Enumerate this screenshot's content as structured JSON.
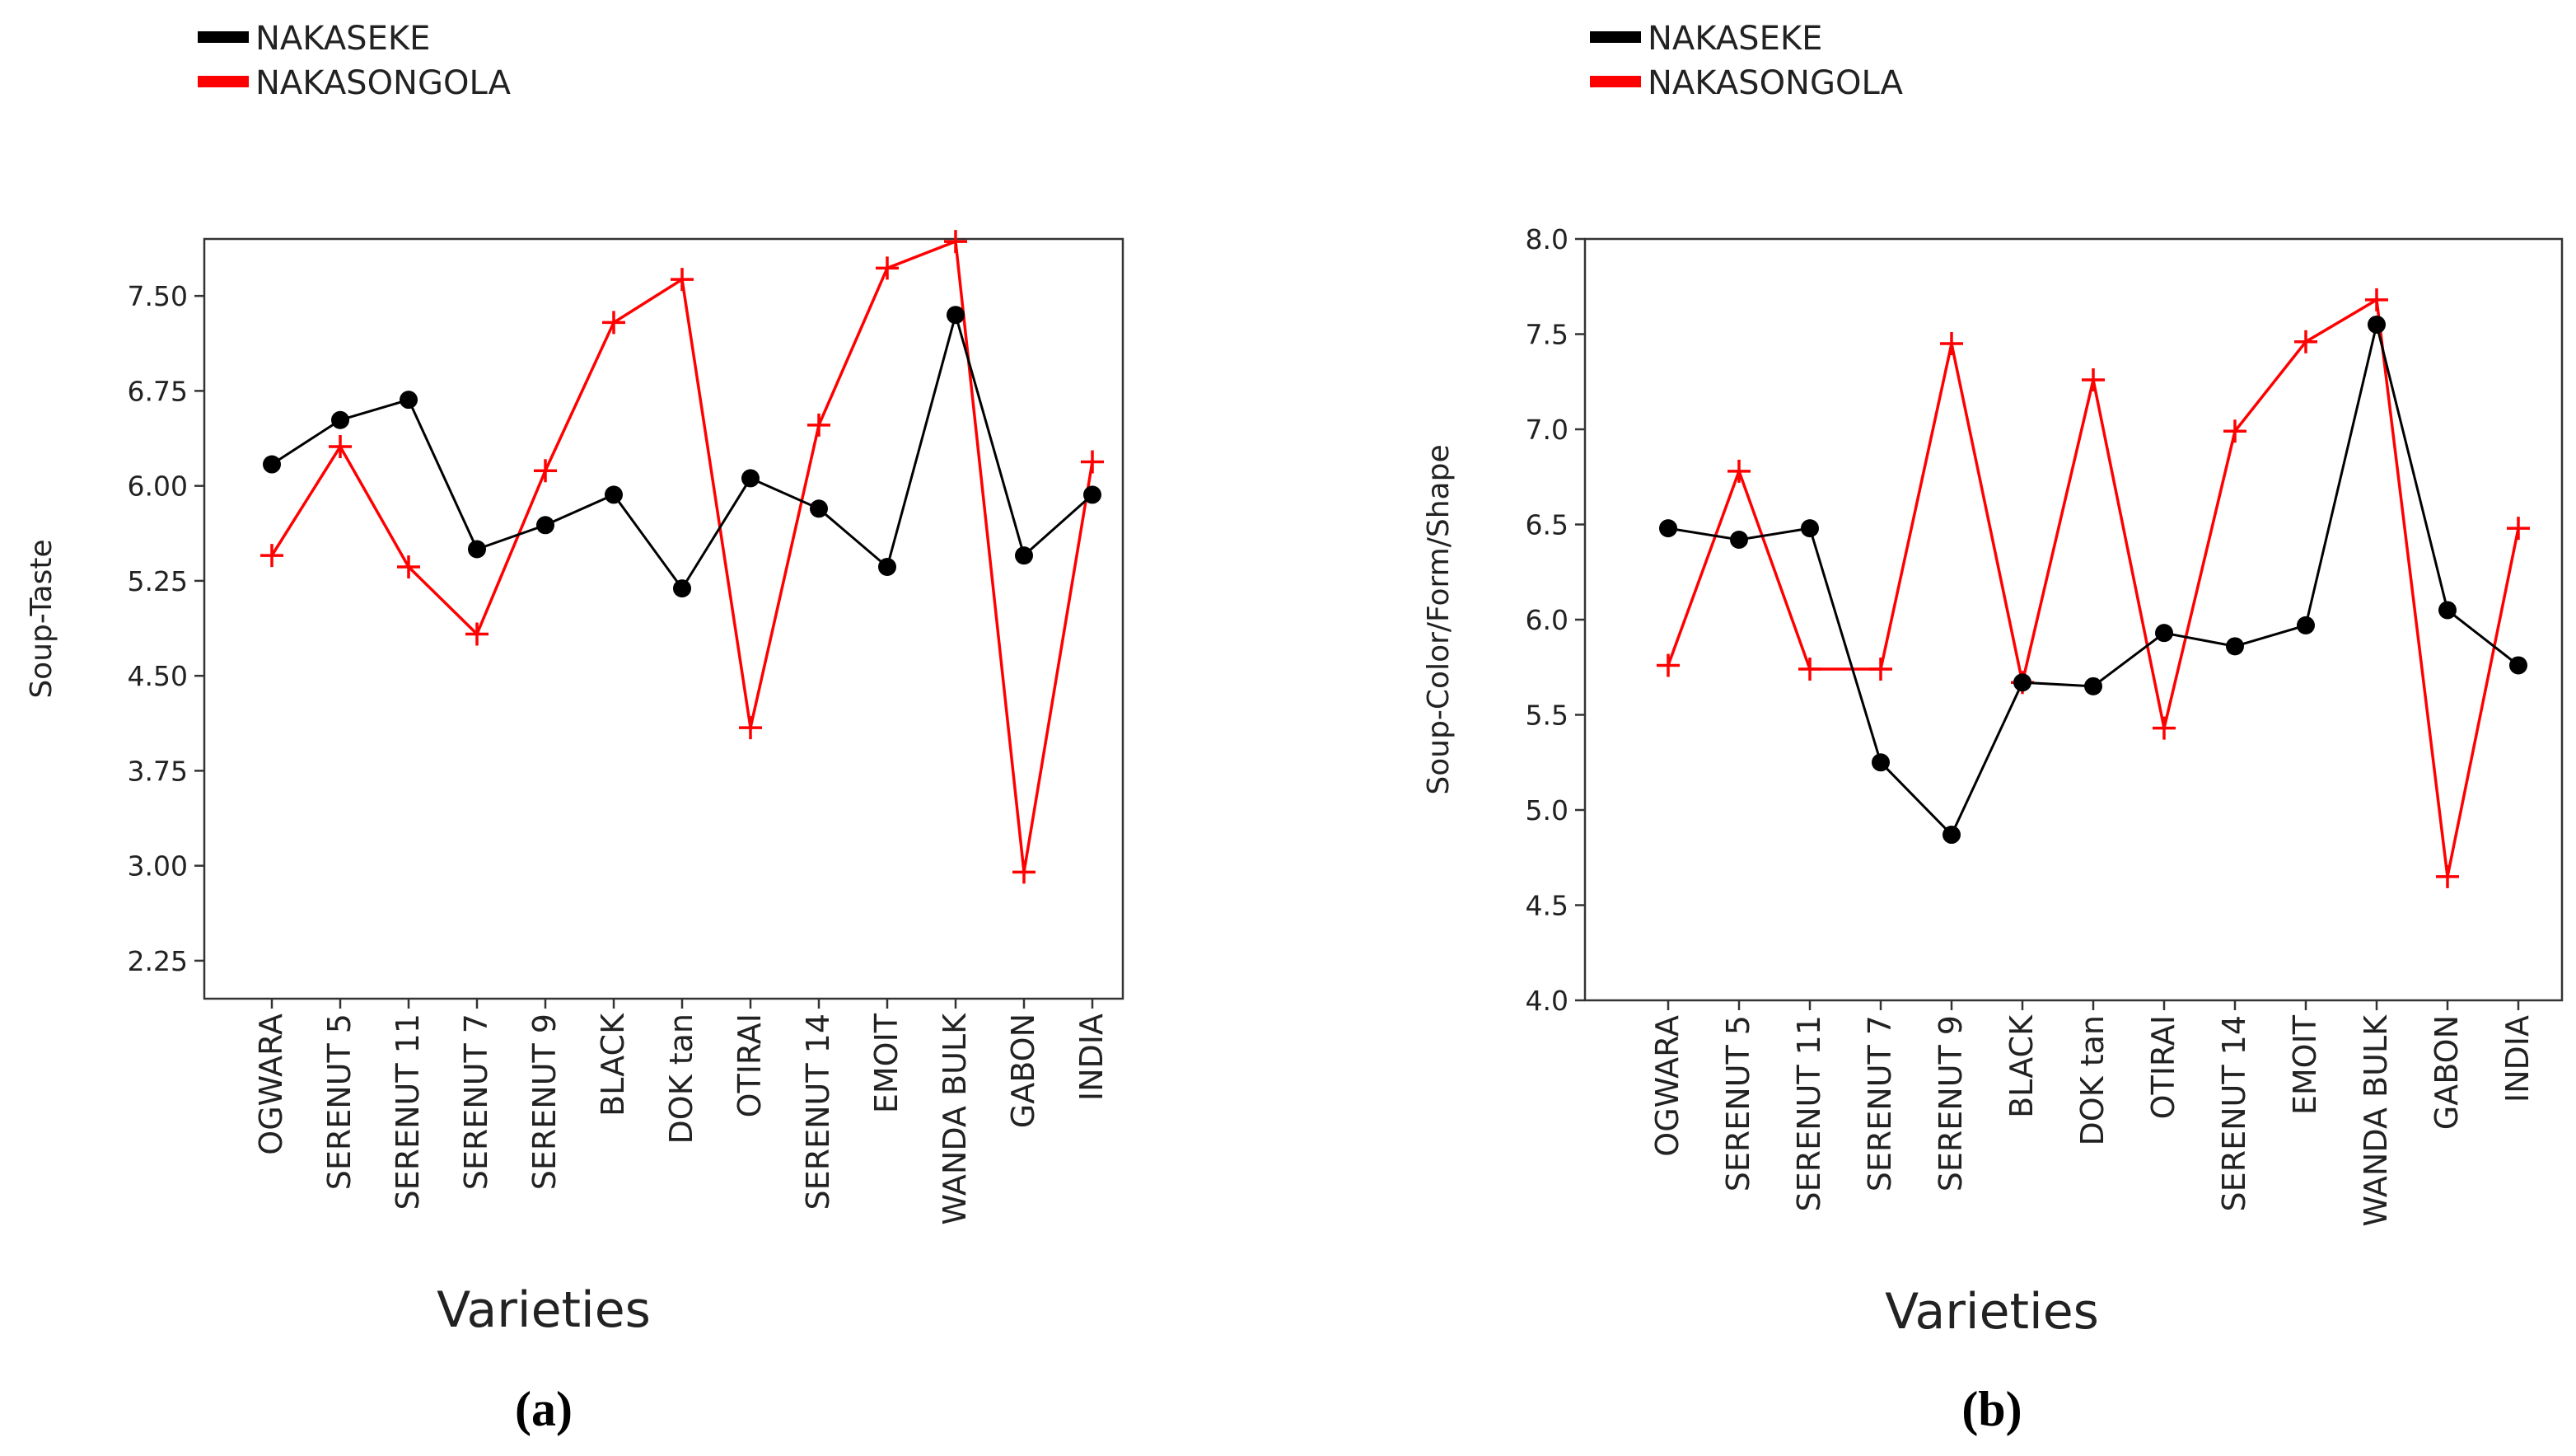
{
  "chart_data": [
    {
      "type": "line",
      "panel_label": "(a)",
      "xlabel": "Varieties",
      "ylabel": "Soup-Taste",
      "categories": [
        "OGWARA",
        "SERENUT 5",
        "SERENUT 11",
        "SERENUT 7",
        "SERENUT 9",
        "BLACK",
        "DOK tan",
        "OTIRAI",
        "SERENUT 14",
        "EMOIT",
        "WANDA BULK",
        "GABON",
        "INDIA"
      ],
      "ylim": [
        1.95,
        7.95
      ],
      "yticks": [
        2.25,
        3.0,
        3.75,
        4.5,
        5.25,
        6.0,
        6.75,
        7.5
      ],
      "ytick_labels": [
        "2.25",
        "3.00",
        "3.75",
        "4.50",
        "5.25",
        "6.00",
        "6.75",
        "7.50"
      ],
      "grid": false,
      "legend_position": "top-left, above plot",
      "series": [
        {
          "name": "NAKASEKE",
          "color": "#000000",
          "marker": "circle",
          "values": [
            6.17,
            6.52,
            6.68,
            5.5,
            5.69,
            5.93,
            5.19,
            6.06,
            5.82,
            5.36,
            7.35,
            5.45,
            5.93
          ]
        },
        {
          "name": "NAKASONGOLA",
          "color": "#ff0000",
          "marker": "plus",
          "values": [
            5.45,
            6.31,
            5.36,
            4.83,
            6.12,
            7.29,
            7.63,
            4.09,
            6.48,
            7.72,
            7.93,
            2.95,
            6.19
          ]
        }
      ]
    },
    {
      "type": "line",
      "panel_label": "(b)",
      "xlabel": "Varieties",
      "ylabel": "Soup-Color/Form/Shape",
      "categories": [
        "OGWARA",
        "SERENUT 5",
        "SERENUT 11",
        "SERENUT 7",
        "SERENUT 9",
        "BLACK",
        "DOK tan",
        "OTIRAI",
        "SERENUT 14",
        "EMOIT",
        "WANDA BULK",
        "GABON",
        "INDIA"
      ],
      "ylim": [
        4.0,
        8.0
      ],
      "yticks": [
        4.0,
        4.5,
        5.0,
        5.5,
        6.0,
        6.5,
        7.0,
        7.5,
        8.0
      ],
      "ytick_labels": [
        "4.0",
        "4.5",
        "5.0",
        "5.5",
        "6.0",
        "6.5",
        "7.0",
        "7.5",
        "8.0"
      ],
      "grid": false,
      "legend_position": "top-left, above plot",
      "series": [
        {
          "name": "NAKASEKE",
          "color": "#000000",
          "marker": "circle",
          "values": [
            6.48,
            6.42,
            6.48,
            5.25,
            4.87,
            5.67,
            5.65,
            5.93,
            5.86,
            5.97,
            7.55,
            6.05,
            5.76
          ]
        },
        {
          "name": "NAKASONGOLA",
          "color": "#ff0000",
          "marker": "plus",
          "values": [
            5.76,
            6.78,
            5.74,
            5.74,
            7.45,
            5.67,
            7.26,
            5.43,
            6.99,
            7.46,
            7.68,
            4.65,
            6.48
          ]
        }
      ]
    }
  ]
}
